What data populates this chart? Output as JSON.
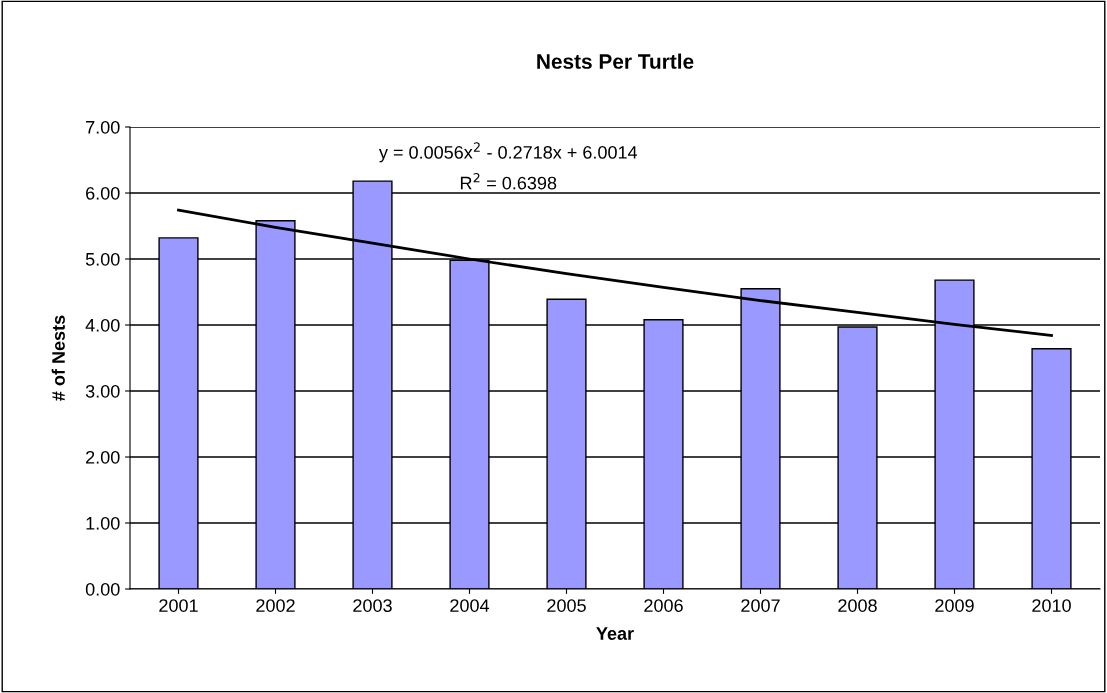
{
  "chart_data": {
    "type": "bar",
    "title": "Nests Per Turtle",
    "xlabel": "Year",
    "ylabel": "# of Nests",
    "categories": [
      "2001",
      "2002",
      "2003",
      "2004",
      "2005",
      "2006",
      "2007",
      "2008",
      "2009",
      "2010"
    ],
    "series": [
      {
        "color": "#9999ff",
        "values": [
          5.32,
          5.58,
          6.18,
          4.98,
          4.39,
          4.08,
          4.55,
          3.97,
          4.68,
          3.64
        ]
      },
      {
        "type": "line",
        "color": "#000000",
        "values": [
          5.74,
          5.48,
          5.24,
          5.0,
          4.78,
          4.57,
          4.37,
          4.19,
          4.01,
          3.84
        ]
      }
    ],
    "annotations": [
      "y = 0.0056x$^{2}$ - 0.2718x + 6.0014",
      "R$^{2}$ = 0.6398"
    ],
    "ylim": [
      0,
      7
    ],
    "yticks": [
      {
        "value": 0,
        "label": "0.00"
      },
      {
        "value": 1,
        "label": "1.00"
      },
      {
        "value": 2,
        "label": "2.00"
      },
      {
        "value": 3,
        "label": "3.00"
      },
      {
        "value": 4,
        "label": "4.00"
      },
      {
        "value": 5,
        "label": "5.00"
      },
      {
        "value": 6,
        "label": "6.00"
      },
      {
        "value": 7,
        "label": "7.00"
      }
    ],
    "grid": "y"
  }
}
